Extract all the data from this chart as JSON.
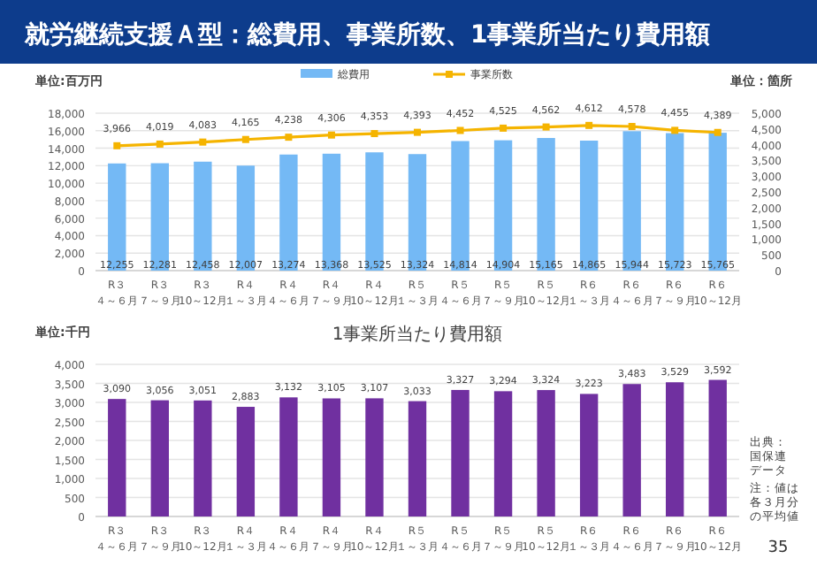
{
  "chart_data": [
    {
      "type": "bar",
      "title": "就労継続支援Ａ型：総費用、事業所数、1事業所当たり費用額",
      "ylabel": "単位:百万円",
      "y2label": "単位：箇所",
      "categories": [
        "R３４～６月",
        "R３７～９月",
        "R３10～12月",
        "R４１～３月",
        "R４４～６月",
        "R４７～９月",
        "R４10～12月",
        "R５１～３月",
        "R５４～６月",
        "R５７～９月",
        "R５10～12月",
        "R６１～３月",
        "R６４～６月",
        "R６７～９月",
        "R６10～12月"
      ],
      "series": [
        {
          "name": "総費用",
          "color": "#74b9f5",
          "values": [
            12255,
            12281,
            12458,
            12007,
            13274,
            13368,
            13525,
            13324,
            14814,
            14904,
            15165,
            14865,
            15944,
            15723,
            15765
          ],
          "value_labels": [
            "12,255",
            "12,281",
            "12,458",
            "12,007",
            "13,274",
            "13,368",
            "13,525",
            "13,324",
            "14,814",
            "14,904",
            "15,165",
            "14,865",
            "15,944",
            "15,723",
            "15,765"
          ]
        },
        {
          "name": "事業所数",
          "type": "line",
          "axis": "y2",
          "color": "#f5b400",
          "values": [
            3966,
            4019,
            4083,
            4165,
            4238,
            4306,
            4353,
            4393,
            4452,
            4525,
            4562,
            4612,
            4578,
            4455,
            4389
          ],
          "value_labels": [
            "3,966",
            "4,019",
            "4,083",
            "4,165",
            "4,238",
            "4,306",
            "4,353",
            "4,393",
            "4,452",
            "4,525",
            "4,562",
            "4,612",
            "4,578",
            "4,455",
            "4,389"
          ]
        }
      ],
      "ylim": [
        0,
        18000
      ],
      "yticks": [
        {
          "value": 0,
          "label": "0"
        },
        {
          "value": 2000,
          "label": "2,000"
        },
        {
          "value": 4000,
          "label": "4,000"
        },
        {
          "value": 6000,
          "label": "6,000"
        },
        {
          "value": 8000,
          "label": "8,000"
        },
        {
          "value": 10000,
          "label": "10,000"
        },
        {
          "value": 12000,
          "label": "12,000"
        },
        {
          "value": 14000,
          "label": "14,000"
        },
        {
          "value": 16000,
          "label": "16,000"
        },
        {
          "value": 18000,
          "label": "18,000"
        }
      ],
      "y2lim": [
        0,
        5000
      ],
      "y2ticks": [
        {
          "value": 0,
          "label": "0"
        },
        500,
        {
          "value": 1000,
          "label": "1,000"
        },
        {
          "value": 1500,
          "label": "1,500"
        },
        {
          "value": 2000,
          "label": "2,000"
        },
        {
          "value": 2500,
          "label": "2,500"
        },
        {
          "value": 3000,
          "label": "3,000"
        },
        {
          "value": 3500,
          "label": "3,500"
        },
        {
          "value": 4000,
          "label": "4,000"
        },
        {
          "value": 4500,
          "label": "4,500"
        },
        {
          "value": 5000,
          "label": "5,000"
        }
      ],
      "grid": "y",
      "legend": "top",
      "marker": "square"
    },
    {
      "type": "bar",
      "title": "1事業所当たり費用額",
      "ylabel": "単位:千円",
      "categories": [
        "R３４～６月",
        "R３７～９月",
        "R３10～12月",
        "R４１～３月",
        "R４４～６月",
        "R４７～９月",
        "R４10～12月",
        "R５１～３月",
        "R５４～６月",
        "R５７～９月",
        "R５10～12月",
        "R６１～３月",
        "R６４～６月",
        "R６７～９月",
        "R６10～12月"
      ],
      "series": [
        {
          "color": "#7030a0",
          "values": [
            3090,
            3056,
            3051,
            2883,
            3132,
            3105,
            3107,
            3033,
            3327,
            3294,
            3324,
            3223,
            3483,
            3529,
            3592
          ],
          "value_labels": [
            "3,090",
            "3,056",
            "3,051",
            "2,883",
            "3,132",
            "3,105",
            "3,107",
            "3,033",
            "3,327",
            "3,294",
            "3,324",
            "3,223",
            "3,483",
            "3,529",
            "3,592"
          ]
        }
      ],
      "ylim": [
        0,
        4000
      ],
      "yticks": [
        {
          "value": 0,
          "label": "0"
        },
        500,
        {
          "value": 1000,
          "label": "1,000"
        },
        {
          "value": 1500,
          "label": "1,500"
        },
        {
          "value": 2000,
          "label": "2,000"
        },
        {
          "value": 2500,
          "label": "2,500"
        },
        {
          "value": 3000,
          "label": "3,000"
        },
        {
          "value": 3500,
          "label": "3,500"
        },
        {
          "value": 4000,
          "label": "4,000"
        }
      ],
      "grid": "y",
      "annotations": [
        "出典：国保連データ",
        "注：値は各３月分の平均値",
        "35"
      ]
    }
  ]
}
